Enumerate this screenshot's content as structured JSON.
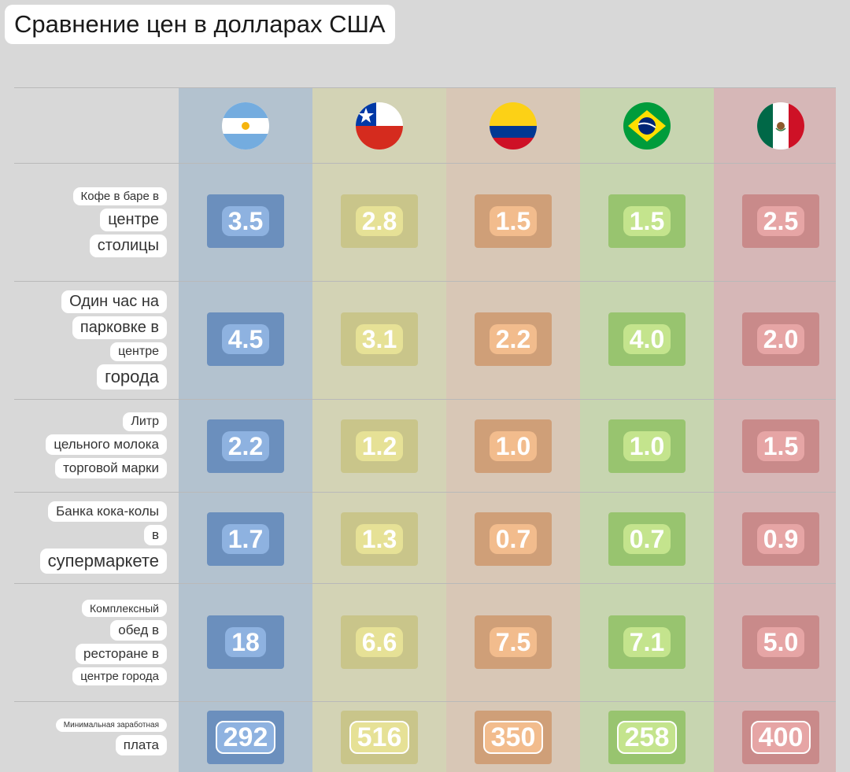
{
  "title": "Сравнение цен в долларах США",
  "chart_data": {
    "type": "table",
    "title": "Сравнение цен в долларах США",
    "countries": [
      {
        "flag": "argentina-flag-icon",
        "band": "#b3c2cf",
        "tile": "#6b8fbd",
        "pill": "#8eb2e0"
      },
      {
        "flag": "chile-flag-icon",
        "band": "#d3d3b5",
        "tile": "#c9c58a",
        "pill": "#e6e196"
      },
      {
        "flag": "colombia-flag-icon",
        "band": "#d8c7b6",
        "tile": "#cf9f78",
        "pill": "#f2bc8d"
      },
      {
        "flag": "brazil-flag-icon",
        "band": "#c7d5b0",
        "tile": "#98c46f",
        "pill": "#c4e48d"
      },
      {
        "flag": "mexico-flag-icon",
        "band": "#d6b7b7",
        "tile": "#c98a8a",
        "pill": "#e6a5a5"
      }
    ],
    "rows": [
      {
        "label": [
          "Кофе в баре в",
          "центре",
          "столицы"
        ],
        "values": [
          "3.5",
          "2.8",
          "1.5",
          "1.5",
          "2.5"
        ]
      },
      {
        "label": [
          "Один час на",
          "парковке в",
          "центре",
          "города"
        ],
        "values": [
          "4.5",
          "3.1",
          "2.2",
          "4.0",
          "2.0"
        ]
      },
      {
        "label": [
          "Литр",
          "цельного молока",
          "торговой марки"
        ],
        "values": [
          "2.2",
          "1.2",
          "1.0",
          "1.0",
          "1.5"
        ]
      },
      {
        "label": [
          "Банка кока-колы",
          "в",
          "супермаркете"
        ],
        "values": [
          "1.7",
          "1.3",
          "0.7",
          "0.7",
          "0.9"
        ]
      },
      {
        "label": [
          "Комплексный",
          "обед в",
          "ресторане в",
          "центре города"
        ],
        "values": [
          "18",
          "6.6",
          "7.5",
          "7.1",
          "5.0"
        ]
      },
      {
        "label": [
          "Минимальная заработная",
          "плата"
        ],
        "values": [
          "292",
          "516",
          "350",
          "258",
          "400"
        ]
      }
    ]
  }
}
